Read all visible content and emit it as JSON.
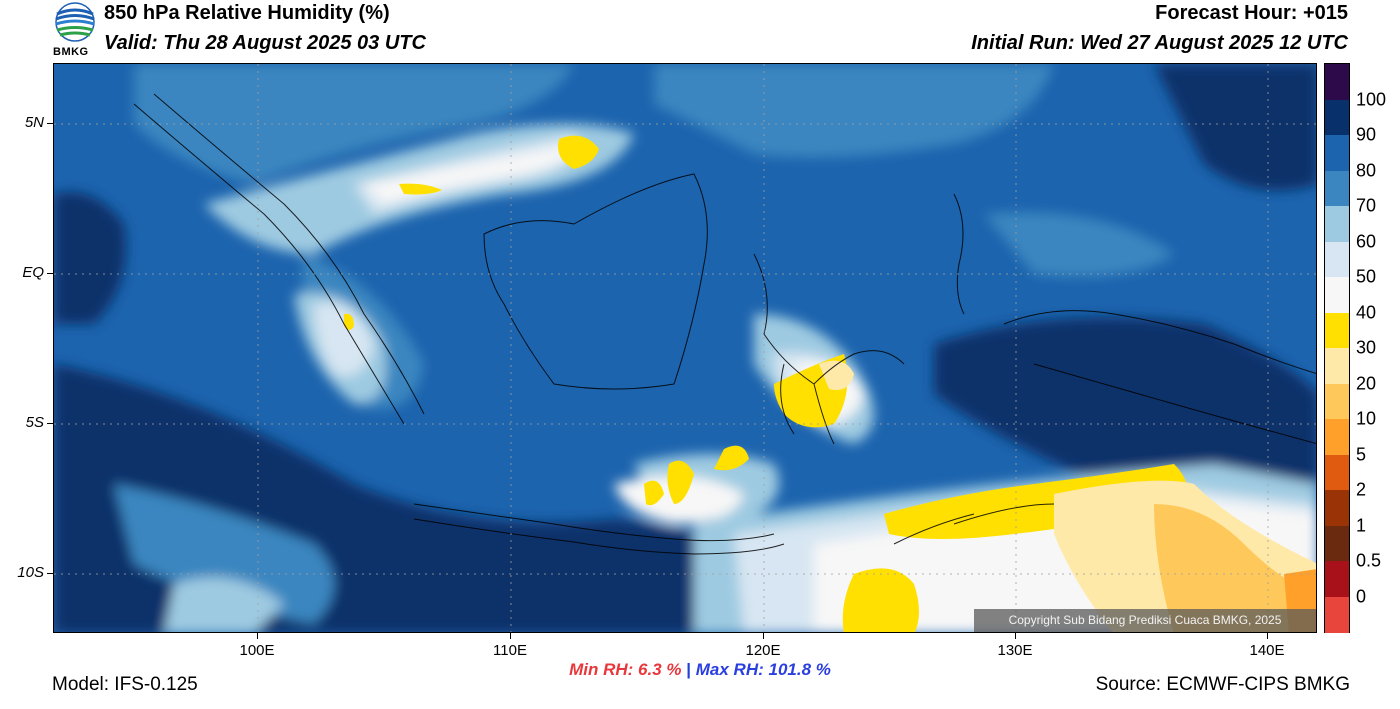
{
  "header": {
    "logo_text": "BMKG",
    "title": "850 hPa Relative Humidity (%)",
    "valid": "Valid: Thu 28 August 2025 03 UTC",
    "forecast_hour": "Forecast Hour: +015",
    "initial_run": "Initial Run: Wed 27 August 2025 12 UTC"
  },
  "map": {
    "lat_labels": [
      "5N",
      "EQ",
      "5S",
      "10S"
    ],
    "lon_labels": [
      "100E",
      "110E",
      "120E",
      "130E",
      "140E"
    ],
    "copyright": "Copyright Sub Bidang Prediksi Cuaca BMKG, 2025"
  },
  "colorbar": {
    "labels": [
      "100",
      "90",
      "80",
      "70",
      "60",
      "50",
      "40",
      "30",
      "20",
      "10",
      "5",
      "2",
      "1",
      "0.5",
      "0"
    ],
    "colors_top_to_bottom": [
      "#2d0b4a",
      "#08306b",
      "#1c64ae",
      "#3b86c0",
      "#9ecae1",
      "#d7e6f2",
      "#f7f7f7",
      "#ffe000",
      "#ffe9a8",
      "#ffc85a",
      "#ffa02a",
      "#e05a10",
      "#9a3306",
      "#6a2a10",
      "#a8111a",
      "#e8453c"
    ]
  },
  "footer": {
    "min_label": "Min RH:",
    "min_value": "6.3 %",
    "separator": "|",
    "max_label": "Max RH:",
    "max_value": "101.8 %",
    "model": "Model: IFS-0.125",
    "source": "Source: ECMWF-CIPS BMKG"
  }
}
